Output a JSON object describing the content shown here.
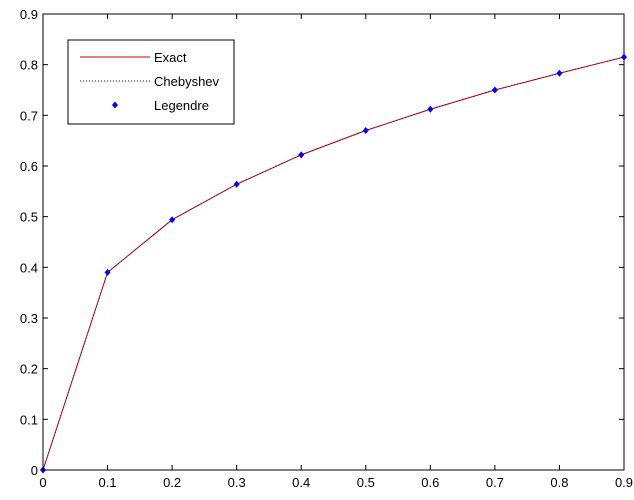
{
  "chart_data": {
    "type": "line",
    "x": [
      0,
      0.1,
      0.2,
      0.3,
      0.4,
      0.5,
      0.6,
      0.7,
      0.8,
      0.9
    ],
    "xlim": [
      0,
      0.9
    ],
    "ylim": [
      0,
      0.9
    ],
    "xticks": [
      "0",
      "0.1",
      "0.2",
      "0.3",
      "0.4",
      "0.5",
      "0.6",
      "0.7",
      "0.8",
      "0.9"
    ],
    "yticks": [
      "0",
      "0.1",
      "0.2",
      "0.3",
      "0.4",
      "0.5",
      "0.6",
      "0.7",
      "0.8",
      "0.9"
    ],
    "grid": false,
    "legend_position": "top-left",
    "series": [
      {
        "name": "Exact",
        "style": "solid-line",
        "color": "#cc0000",
        "values": [
          0,
          0.39,
          0.494,
          0.564,
          0.622,
          0.67,
          0.712,
          0.75,
          0.783,
          0.815
        ]
      },
      {
        "name": "Chebyshev",
        "style": "dotted-line",
        "color": "#000080",
        "values": [
          0,
          0.39,
          0.494,
          0.564,
          0.622,
          0.67,
          0.712,
          0.75,
          0.783,
          0.815
        ]
      },
      {
        "name": "Legendre",
        "style": "markers",
        "color": "#0000ff",
        "values": [
          0,
          0.39,
          0.494,
          0.564,
          0.622,
          0.67,
          0.712,
          0.75,
          0.783,
          0.815
        ]
      }
    ]
  }
}
